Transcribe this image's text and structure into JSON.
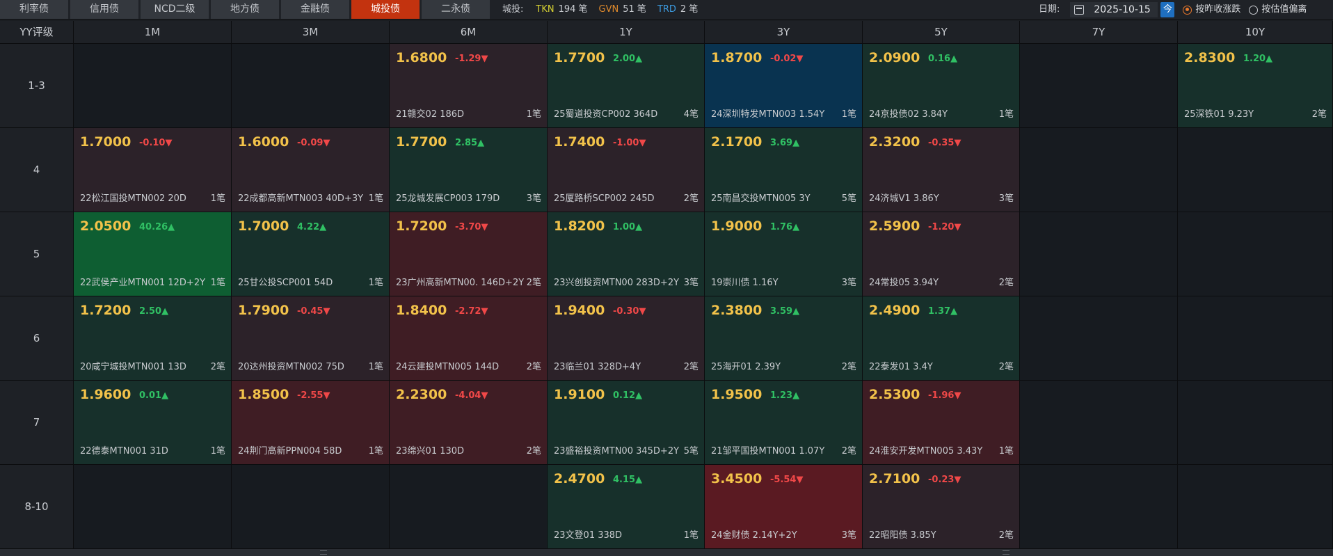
{
  "tabs": [
    {
      "label": "利率债",
      "active": false
    },
    {
      "label": "信用债",
      "active": false
    },
    {
      "label": "NCD二级",
      "active": false
    },
    {
      "label": "地方债",
      "active": false
    },
    {
      "label": "金融债",
      "active": false
    },
    {
      "label": "城投债",
      "active": true
    },
    {
      "label": "二永债",
      "active": false
    }
  ],
  "summary": {
    "label": "城投:",
    "tkn_label": "TKN",
    "tkn_value": "194 笔",
    "gvn_label": "GVN",
    "gvn_value": "51 笔",
    "trd_label": "TRD",
    "trd_value": "2 笔"
  },
  "date": {
    "label": "日期:",
    "value": "2025-10-15",
    "today_label": "今",
    "radio1": "按昨收涨跌",
    "radio2": "按估值偏离"
  },
  "colors": {
    "up": "#30c064",
    "down": "#f04848",
    "yield": "#f2c24a",
    "active_tab": "#c3330f",
    "highlight": "#093350"
  },
  "grid": {
    "corner_label": "YY评级",
    "columns": [
      "1M",
      "3M",
      "6M",
      "1Y",
      "3Y",
      "5Y",
      "7Y",
      "10Y"
    ],
    "rows": [
      {
        "label": "1-3",
        "cells": [
          null,
          null,
          {
            "yield": "1.6800",
            "change": "-1.29",
            "dir": "down",
            "name": "21赣交02 186D",
            "count": "1笔",
            "bg": "r1"
          },
          {
            "yield": "1.7700",
            "change": "2.00",
            "dir": "up",
            "name": "25蜀道投资CP002 364D",
            "count": "4笔",
            "bg": "g1"
          },
          {
            "yield": "1.8700",
            "change": "-0.02",
            "dir": "down",
            "name": "24深圳特发MTN003 1.54Y",
            "count": "1笔",
            "bg": "b"
          },
          {
            "yield": "2.0900",
            "change": "0.16",
            "dir": "up",
            "name": "24京投债02 3.84Y",
            "count": "1笔",
            "bg": "g1"
          },
          null,
          {
            "yield": "2.8300",
            "change": "1.20",
            "dir": "up",
            "name": "25深铁01 9.23Y",
            "count": "2笔",
            "bg": "g1"
          }
        ]
      },
      {
        "label": "4",
        "cells": [
          {
            "yield": "1.7000",
            "change": "-0.10",
            "dir": "down",
            "name": "22松江国投MTN002 20D",
            "count": "1笔",
            "bg": "r1"
          },
          {
            "yield": "1.6000",
            "change": "-0.09",
            "dir": "down",
            "name": "22成都高新MTN003 40D+3Y",
            "count": "1笔",
            "bg": "r1"
          },
          {
            "yield": "1.7700",
            "change": "2.85",
            "dir": "up",
            "name": "25龙城发展CP003 179D",
            "count": "3笔",
            "bg": "g1"
          },
          {
            "yield": "1.7400",
            "change": "-1.00",
            "dir": "down",
            "name": "25厦路桥SCP002 245D",
            "count": "2笔",
            "bg": "r1"
          },
          {
            "yield": "2.1700",
            "change": "3.69",
            "dir": "up",
            "name": "25南昌交投MTN005 3Y",
            "count": "5笔",
            "bg": "g1"
          },
          {
            "yield": "2.3200",
            "change": "-0.35",
            "dir": "down",
            "name": "24济城V1 3.86Y",
            "count": "3笔",
            "bg": "r1"
          },
          null,
          null
        ]
      },
      {
        "label": "5",
        "cells": [
          {
            "yield": "2.0500",
            "change": "40.26",
            "dir": "up",
            "name": "22武侯产业MTN001 12D+2Y",
            "count": "1笔",
            "bg": "g2"
          },
          {
            "yield": "1.7000",
            "change": "4.22",
            "dir": "up",
            "name": "25甘公投SCP001 54D",
            "count": "1笔",
            "bg": "g1"
          },
          {
            "yield": "1.7200",
            "change": "-3.70",
            "dir": "down",
            "name": "23广州高新MTN00. 146D+2Y",
            "count": "2笔",
            "bg": "r2"
          },
          {
            "yield": "1.8200",
            "change": "1.00",
            "dir": "up",
            "name": "23兴创投资MTN00  283D+2Y",
            "count": "3笔",
            "bg": "g1"
          },
          {
            "yield": "1.9000",
            "change": "1.76",
            "dir": "up",
            "name": "19崇川债 1.16Y",
            "count": "3笔",
            "bg": "g1"
          },
          {
            "yield": "2.5900",
            "change": "-1.20",
            "dir": "down",
            "name": "24常投05 3.94Y",
            "count": "2笔",
            "bg": "r1"
          },
          null,
          null
        ]
      },
      {
        "label": "6",
        "cells": [
          {
            "yield": "1.7200",
            "change": "2.50",
            "dir": "up",
            "name": "20咸宁城投MTN001 13D",
            "count": "2笔",
            "bg": "g1"
          },
          {
            "yield": "1.7900",
            "change": "-0.45",
            "dir": "down",
            "name": "20达州投资MTN002 75D",
            "count": "1笔",
            "bg": "r1"
          },
          {
            "yield": "1.8400",
            "change": "-2.72",
            "dir": "down",
            "name": "24云建投MTN005 144D",
            "count": "2笔",
            "bg": "r2"
          },
          {
            "yield": "1.9400",
            "change": "-0.30",
            "dir": "down",
            "name": "23临兰01 328D+4Y",
            "count": "2笔",
            "bg": "r1"
          },
          {
            "yield": "2.3800",
            "change": "3.59",
            "dir": "up",
            "name": "25海开01 2.39Y",
            "count": "2笔",
            "bg": "g1"
          },
          {
            "yield": "2.4900",
            "change": "1.37",
            "dir": "up",
            "name": "22泰发01 3.4Y",
            "count": "2笔",
            "bg": "g1"
          },
          null,
          null
        ]
      },
      {
        "label": "7",
        "cells": [
          {
            "yield": "1.9600",
            "change": "0.01",
            "dir": "up",
            "name": "22德泰MTN001 31D",
            "count": "1笔",
            "bg": "g1"
          },
          {
            "yield": "1.8500",
            "change": "-2.55",
            "dir": "down",
            "name": "24荆门高新PPN004 58D",
            "count": "1笔",
            "bg": "r2"
          },
          {
            "yield": "2.2300",
            "change": "-4.04",
            "dir": "down",
            "name": "23绵兴01 130D",
            "count": "2笔",
            "bg": "r2"
          },
          {
            "yield": "1.9100",
            "change": "0.12",
            "dir": "up",
            "name": "23盛裕投资MTN00  345D+2Y",
            "count": "5笔",
            "bg": "g1"
          },
          {
            "yield": "1.9500",
            "change": "1.23",
            "dir": "up",
            "name": "21邹平国投MTN001 1.07Y",
            "count": "2笔",
            "bg": "g1"
          },
          {
            "yield": "2.5300",
            "change": "-1.96",
            "dir": "down",
            "name": "24淮安开发MTN005 3.43Y",
            "count": "1笔",
            "bg": "r2"
          },
          null,
          null
        ]
      },
      {
        "label": "8-10",
        "cells": [
          null,
          null,
          null,
          {
            "yield": "2.4700",
            "change": "4.15",
            "dir": "up",
            "name": "23文登01 338D",
            "count": "1笔",
            "bg": "g1"
          },
          {
            "yield": "3.4500",
            "change": "-5.54",
            "dir": "down",
            "name": "24金财债 2.14Y+2Y",
            "count": "3笔",
            "bg": "r3"
          },
          {
            "yield": "2.7100",
            "change": "-0.23",
            "dir": "down",
            "name": "22昭阳债 3.85Y",
            "count": "2笔",
            "bg": "r1"
          },
          null,
          null
        ]
      }
    ]
  }
}
